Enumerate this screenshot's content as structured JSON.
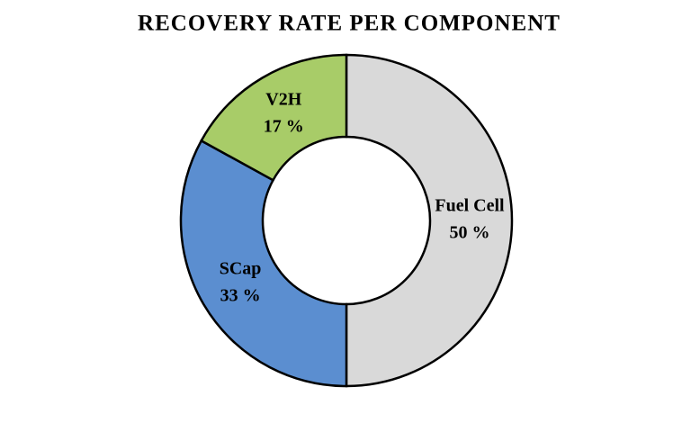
{
  "chart_data": {
    "type": "donut",
    "title": "RECOVERY RATE PER COMPONENT",
    "categories": [
      "Fuel Cell",
      "SCap",
      "V2H"
    ],
    "values": [
      50,
      33,
      17
    ],
    "value_labels": [
      "50 %",
      "33 %",
      "17 %"
    ],
    "colors": [
      "#d9d9d9",
      "#5b8ed0",
      "#a8cc68"
    ]
  }
}
